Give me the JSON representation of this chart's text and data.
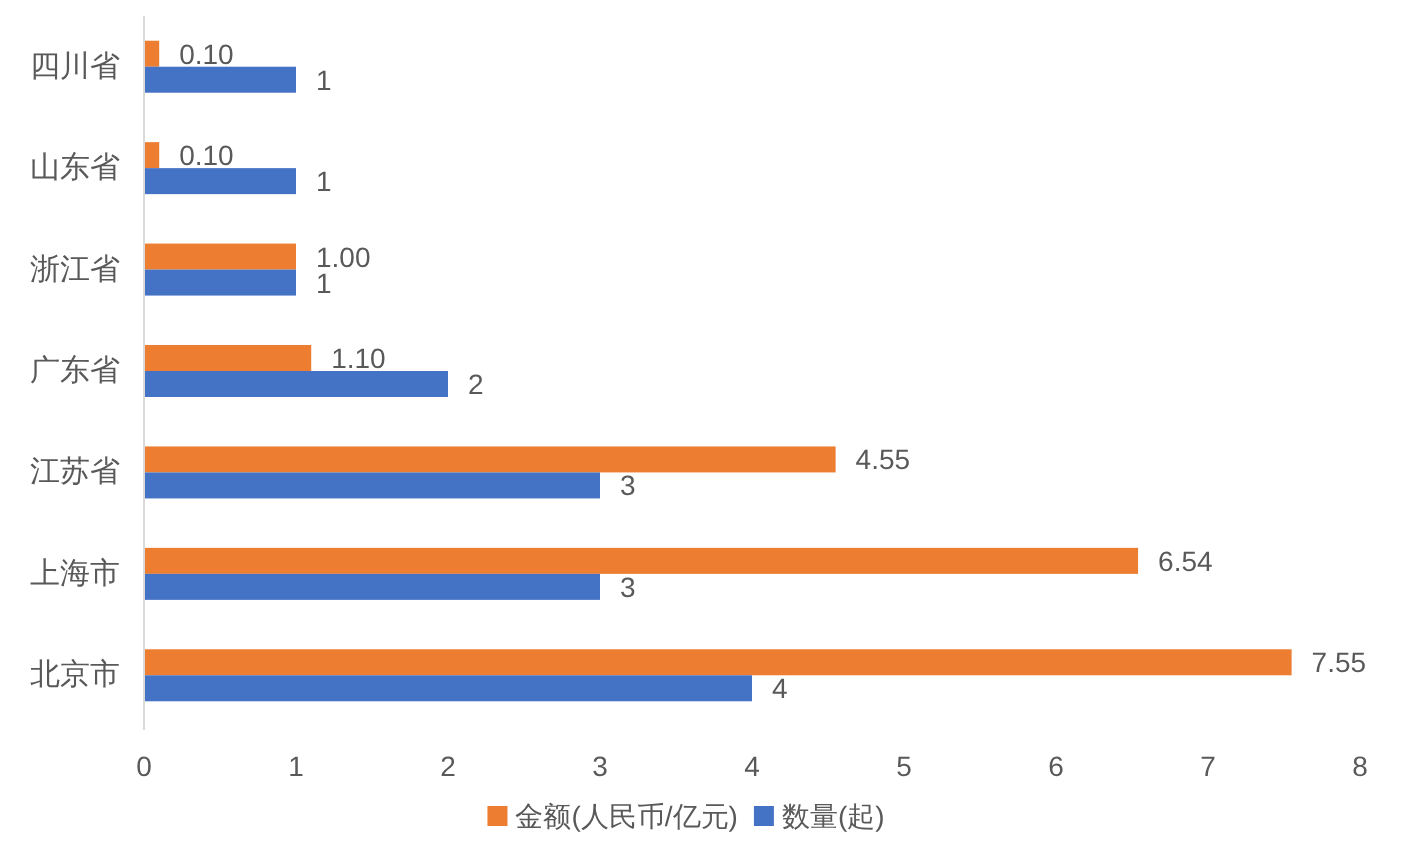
{
  "chart_data": {
    "type": "bar",
    "orientation": "horizontal",
    "categories": [
      "四川省",
      "山东省",
      "浙江省",
      "广东省",
      "江苏省",
      "上海市",
      "北京市"
    ],
    "series": [
      {
        "name": "金额(人民币/亿元)",
        "color": "#ed7d31",
        "values": [
          0.1,
          0.1,
          1,
          1.1,
          4.55,
          6.54,
          7.55
        ],
        "value_labels": [
          "0.10",
          "0.10",
          "1.00",
          "1.10",
          "4.55",
          "6.54",
          "7.55"
        ]
      },
      {
        "name": "数量(起)",
        "color": "#4472c4",
        "values": [
          1,
          1,
          1,
          2,
          3,
          3,
          4
        ],
        "value_labels": [
          "1",
          "1",
          "1",
          "2",
          "3",
          "3",
          "4"
        ]
      }
    ],
    "xlim": [
      0,
      8
    ],
    "xticks": [
      0,
      1,
      2,
      3,
      4,
      5,
      6,
      7,
      8
    ],
    "legend": "bottom"
  }
}
